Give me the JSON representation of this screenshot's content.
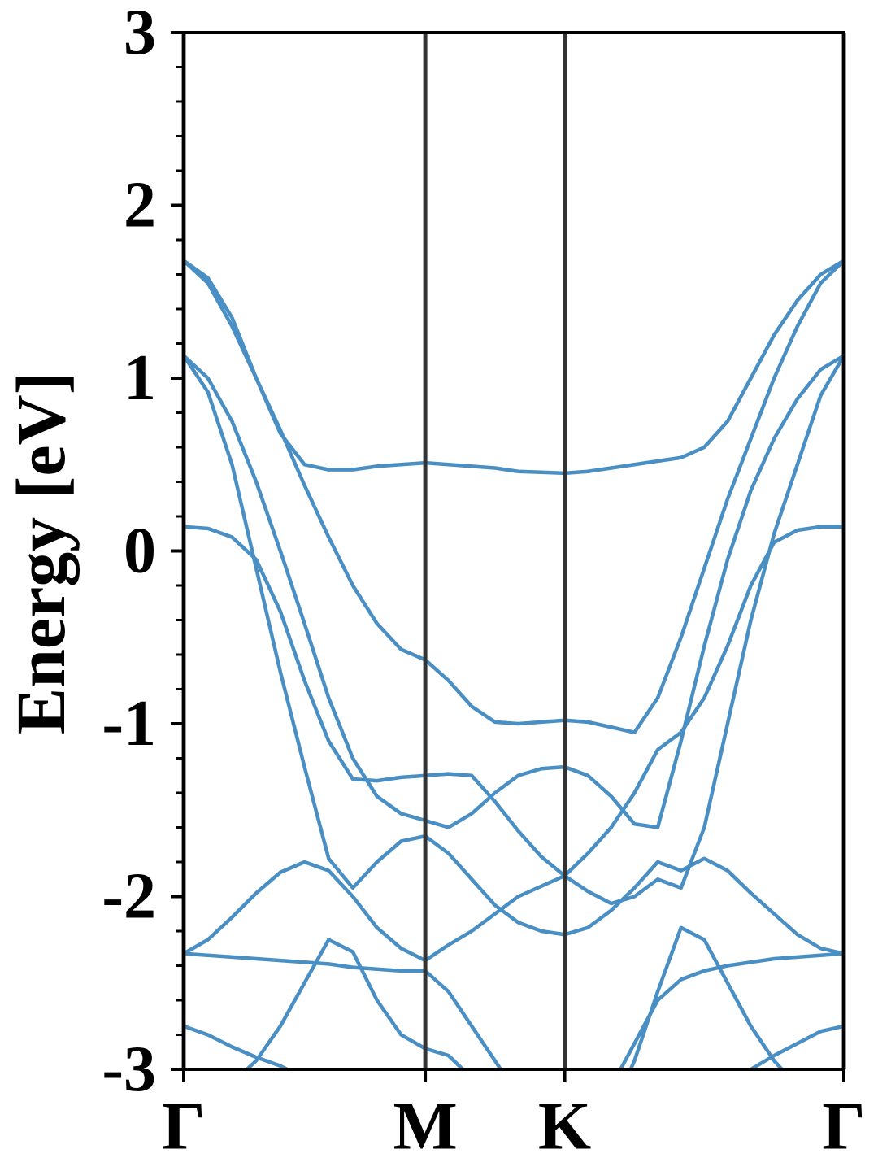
{
  "chart_data": {
    "type": "line",
    "ylabel": "Energy [eV]",
    "xlim": [
      0,
      1.577
    ],
    "xticks": [
      {
        "value": 0,
        "label": "Γ"
      },
      {
        "value": 0.577,
        "label": "M"
      },
      {
        "value": 0.91,
        "label": "K"
      },
      {
        "value": 1.577,
        "label": "Γ"
      }
    ],
    "xgrid": true,
    "ylim": [
      -3,
      3
    ],
    "yticks": [
      -3,
      -2,
      -1,
      0,
      1,
      2,
      3
    ],
    "yminorticks": [
      -2.8,
      -2.6,
      -2.4,
      -2.2,
      -1.8,
      -1.6,
      -1.4,
      -1.2,
      -0.8,
      -0.6,
      -0.4,
      -0.2,
      0.2,
      0.4,
      0.6,
      0.8,
      1.2,
      1.4,
      1.6,
      1.8,
      2.2,
      2.4,
      2.6,
      2.8
    ],
    "color": "#4a8fc4",
    "x": [
      0,
      0.0577,
      0.1154,
      0.1731,
      0.2308,
      0.2885,
      0.3462,
      0.4039,
      0.4616,
      0.5193,
      0.577,
      0.6325,
      0.688,
      0.7435,
      0.799,
      0.8545,
      0.91,
      0.9656,
      1.0212,
      1.0768,
      1.1324,
      1.188,
      1.2436,
      1.2992,
      1.3548,
      1.4104,
      1.466,
      1.5216,
      1.577
    ],
    "series": [
      {
        "values": [
          1.68,
          1.58,
          1.35,
          1.0,
          0.68,
          0.5,
          0.47,
          0.47,
          0.49,
          0.5,
          0.51,
          0.5,
          0.49,
          0.48,
          0.46,
          0.455,
          0.45,
          0.46,
          0.48,
          0.5,
          0.52,
          0.54,
          0.6,
          0.75,
          1.0,
          1.25,
          1.45,
          1.6,
          1.68
        ]
      },
      {
        "values": [
          1.68,
          1.55,
          1.3,
          1.0,
          0.7,
          0.38,
          0.08,
          -0.2,
          -0.42,
          -0.57,
          -0.63,
          -0.75,
          -0.9,
          -0.99,
          -1.0,
          -0.99,
          -0.98,
          -0.99,
          -1.02,
          -1.05,
          -0.85,
          -0.5,
          -0.1,
          0.3,
          0.65,
          1.0,
          1.3,
          1.55,
          1.68
        ]
      },
      {
        "values": [
          1.13,
          1.0,
          0.75,
          0.4,
          0.0,
          -0.42,
          -0.85,
          -1.2,
          -1.42,
          -1.52,
          -1.56,
          -1.6,
          -1.52,
          -1.4,
          -1.3,
          -1.26,
          -1.25,
          -1.3,
          -1.42,
          -1.58,
          -1.6,
          -1.1,
          -0.55,
          -0.05,
          0.35,
          0.65,
          0.88,
          1.05,
          1.13
        ]
      },
      {
        "values": [
          1.13,
          0.92,
          0.5,
          -0.1,
          -0.7,
          -1.25,
          -1.78,
          -1.95,
          -1.8,
          -1.68,
          -1.65,
          -1.75,
          -1.9,
          -2.05,
          -2.15,
          -2.2,
          -2.22,
          -2.18,
          -2.08,
          -1.95,
          -1.8,
          -1.85,
          -1.78,
          -1.85,
          -1.98,
          -2.1,
          -2.22,
          -2.3,
          -2.33
        ]
      },
      {
        "values": [
          0.14,
          0.13,
          0.08,
          -0.05,
          -0.35,
          -0.75,
          -1.1,
          -1.32,
          -1.33,
          -1.31,
          -1.3,
          -1.29,
          -1.3,
          -1.45,
          -1.62,
          -1.77,
          -1.88,
          -1.97,
          -2.04,
          -2.0,
          -1.9,
          -1.95,
          -1.6,
          -1.0,
          -0.4,
          0.1,
          0.5,
          0.9,
          1.13
        ]
      },
      {
        "values": [
          -2.33,
          -2.25,
          -2.12,
          -1.98,
          -1.86,
          -1.8,
          -1.85,
          -2.0,
          -2.18,
          -2.3,
          -2.37,
          -2.28,
          -2.2,
          -2.1,
          -2.0,
          -1.94,
          -1.88,
          -1.75,
          -1.6,
          -1.4,
          -1.15,
          -1.05,
          -0.85,
          -0.55,
          -0.2,
          0.05,
          0.12,
          0.14,
          0.14
        ]
      },
      {
        "values": [
          -2.33,
          -2.34,
          -2.35,
          -2.36,
          -2.37,
          -2.38,
          -2.39,
          -2.41,
          -2.42,
          -2.43,
          -2.43,
          -2.55,
          -2.75,
          -2.95,
          -3.15,
          -3.35,
          -3.5,
          -3.3,
          -3.1,
          -2.85,
          -2.6,
          -2.48,
          -2.43,
          -2.4,
          -2.38,
          -2.36,
          -2.35,
          -2.34,
          -2.33
        ]
      },
      {
        "values": [
          -2.75,
          -2.8,
          -2.87,
          -2.93,
          -2.98,
          -3.05,
          -3.1,
          -3.15,
          -3.2,
          -3.25,
          -3.3,
          -3.4,
          -3.5,
          -3.6,
          -3.6,
          -3.5,
          -3.4,
          -3.35,
          -3.3,
          -3.25,
          -3.2,
          -3.15,
          -3.1,
          -3.05,
          -3.0,
          -2.92,
          -2.85,
          -2.78,
          -2.75
        ]
      },
      {
        "values": [
          -3.3,
          -3.2,
          -3.08,
          -2.95,
          -2.75,
          -2.5,
          -2.25,
          -2.32,
          -2.6,
          -2.8,
          -2.88,
          -2.92,
          -3.05,
          -3.2,
          -3.35,
          -3.45,
          -3.5,
          -3.5,
          -3.25,
          -2.95,
          -2.55,
          -2.18,
          -2.25,
          -2.5,
          -2.75,
          -2.95,
          -3.1,
          -3.2,
          -3.25
        ]
      }
    ]
  }
}
